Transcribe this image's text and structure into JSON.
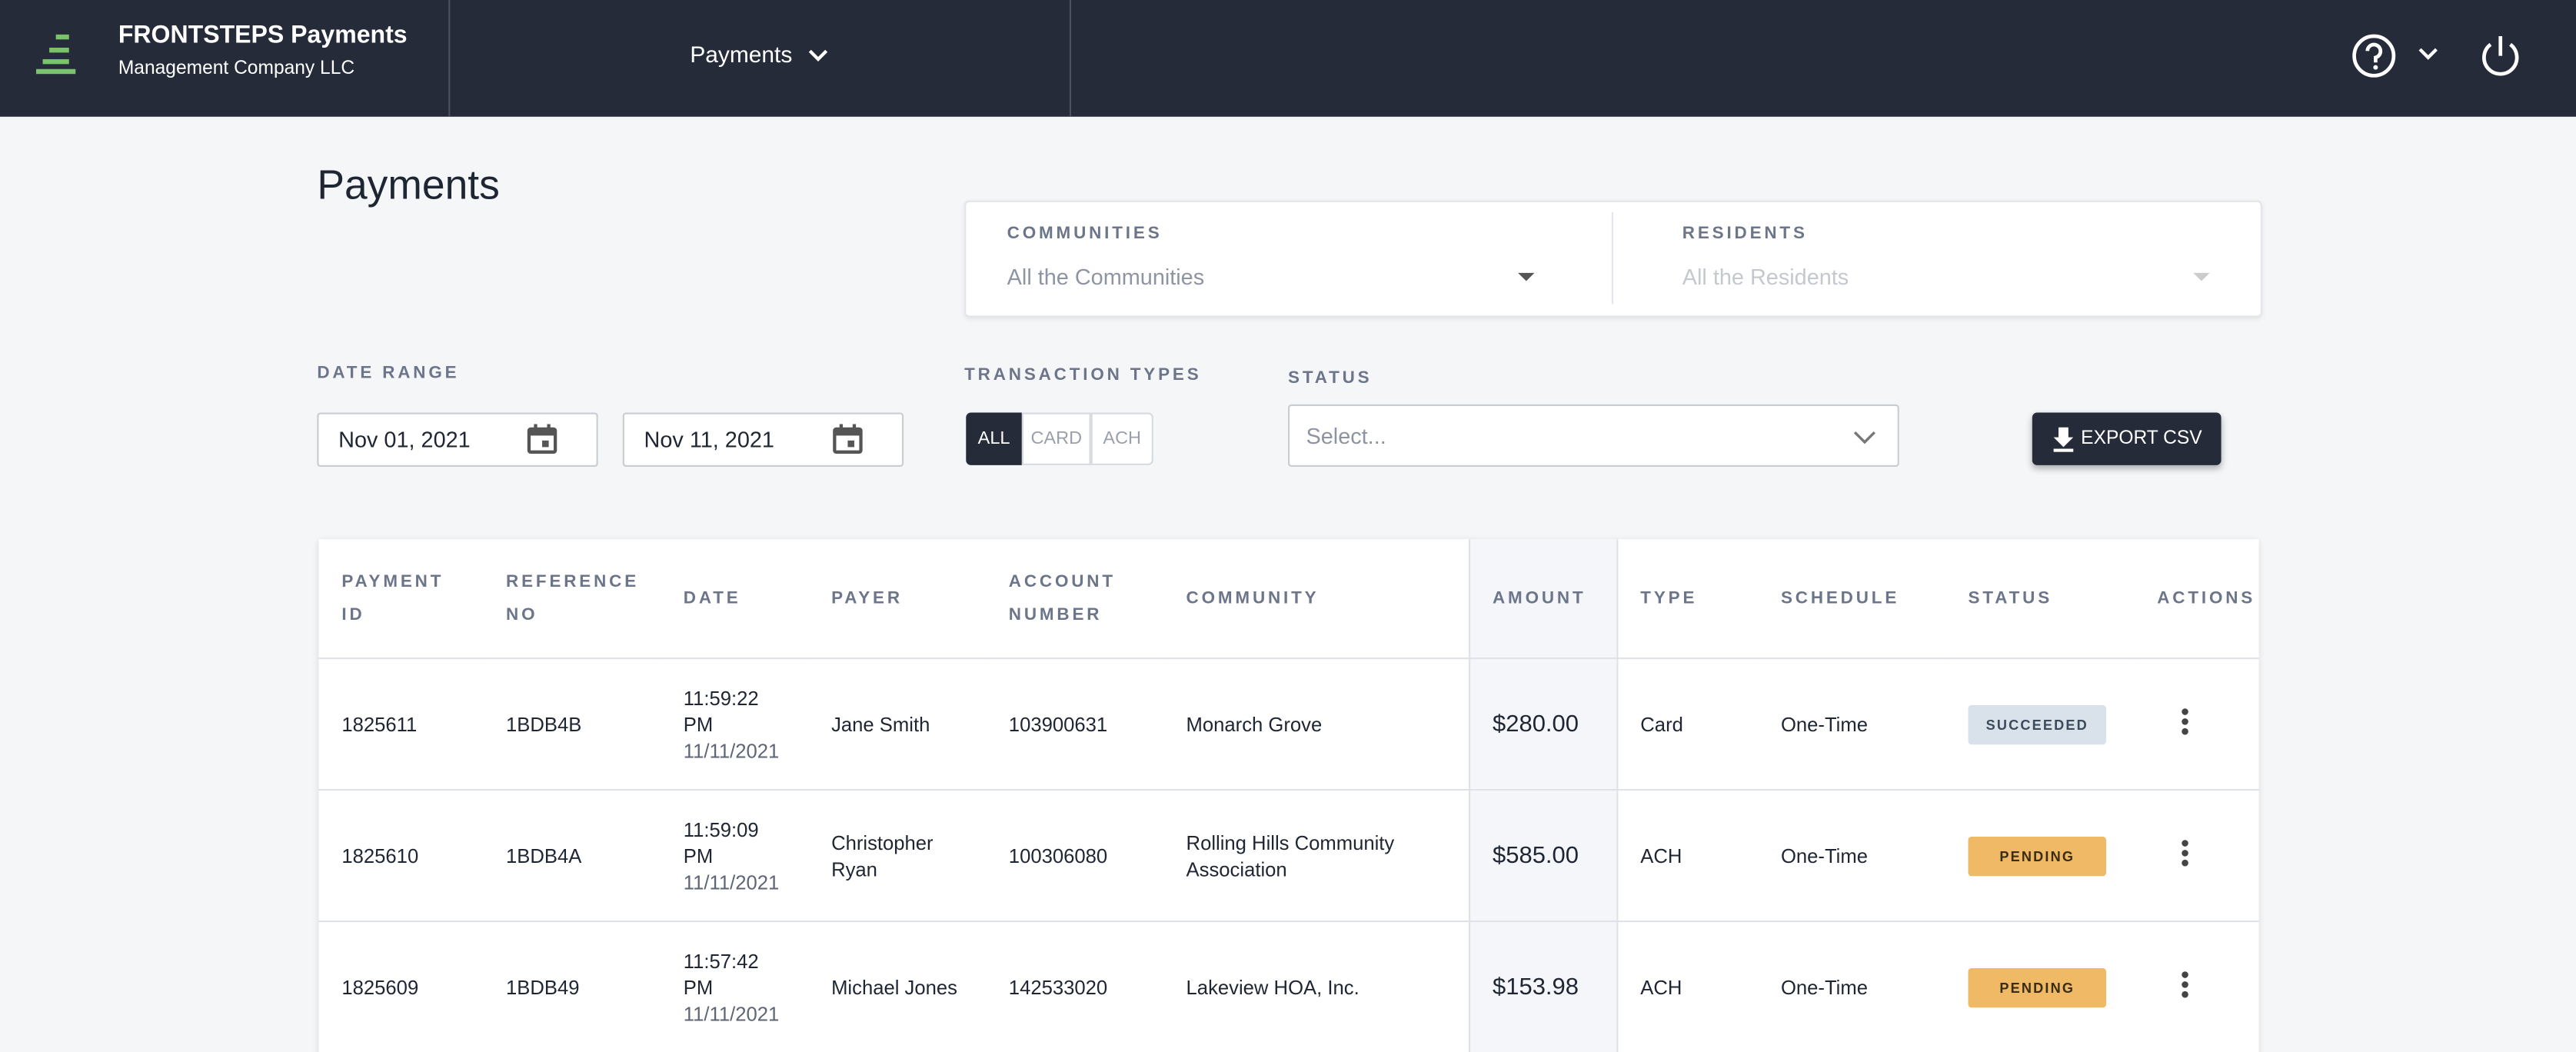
{
  "header": {
    "brand": "FRONTSTEPS Payments",
    "company": "Management Company LLC",
    "nav": "Payments"
  },
  "page": {
    "title": "Payments"
  },
  "filters": {
    "communities": {
      "label": "COMMUNITIES",
      "placeholder": "All the Communities"
    },
    "residents": {
      "label": "RESIDENTS",
      "placeholder": "All the Residents"
    },
    "date_range": {
      "label": "DATE RANGE",
      "start": "Nov 01, 2021",
      "end": "Nov 11, 2021"
    },
    "transaction_types": {
      "label": "TRANSACTION TYPES",
      "options": [
        "ALL",
        "CARD",
        "ACH"
      ]
    },
    "status": {
      "label": "STATUS",
      "placeholder": "Select..."
    },
    "export": "EXPORT CSV"
  },
  "table": {
    "columns": [
      "PAYMENT ID",
      "REFERENCE NO",
      "DATE",
      "PAYER",
      "ACCOUNT NUMBER",
      "COMMUNITY",
      "AMOUNT",
      "TYPE",
      "SCHEDULE",
      "STATUS",
      "ACTIONS"
    ],
    "rows": [
      {
        "payment_id": "1825611",
        "reference_no": "1BDB4B",
        "time": "11:59:22 PM",
        "date": "11/11/2021",
        "payer": "Jane Smith",
        "account_number": "103900631",
        "community": "Monarch Grove",
        "amount": "$280.00",
        "type": "Card",
        "schedule": "One-Time",
        "status": "SUCCEEDED"
      },
      {
        "payment_id": "1825610",
        "reference_no": "1BDB4A",
        "time": "11:59:09 PM",
        "date": "11/11/2021",
        "payer": "Christopher Ryan",
        "account_number": "100306080",
        "community": "Rolling Hills Community Association",
        "amount": "$585.00",
        "type": "ACH",
        "schedule": "One-Time",
        "status": "PENDING"
      },
      {
        "payment_id": "1825609",
        "reference_no": "1BDB49",
        "time": "11:57:42 PM",
        "date": "11/11/2021",
        "payer": "Michael Jones",
        "account_number": "142533020",
        "community": "Lakeview HOA, Inc.",
        "amount": "$153.98",
        "type": "ACH",
        "schedule": "One-Time",
        "status": "PENDING"
      }
    ]
  }
}
